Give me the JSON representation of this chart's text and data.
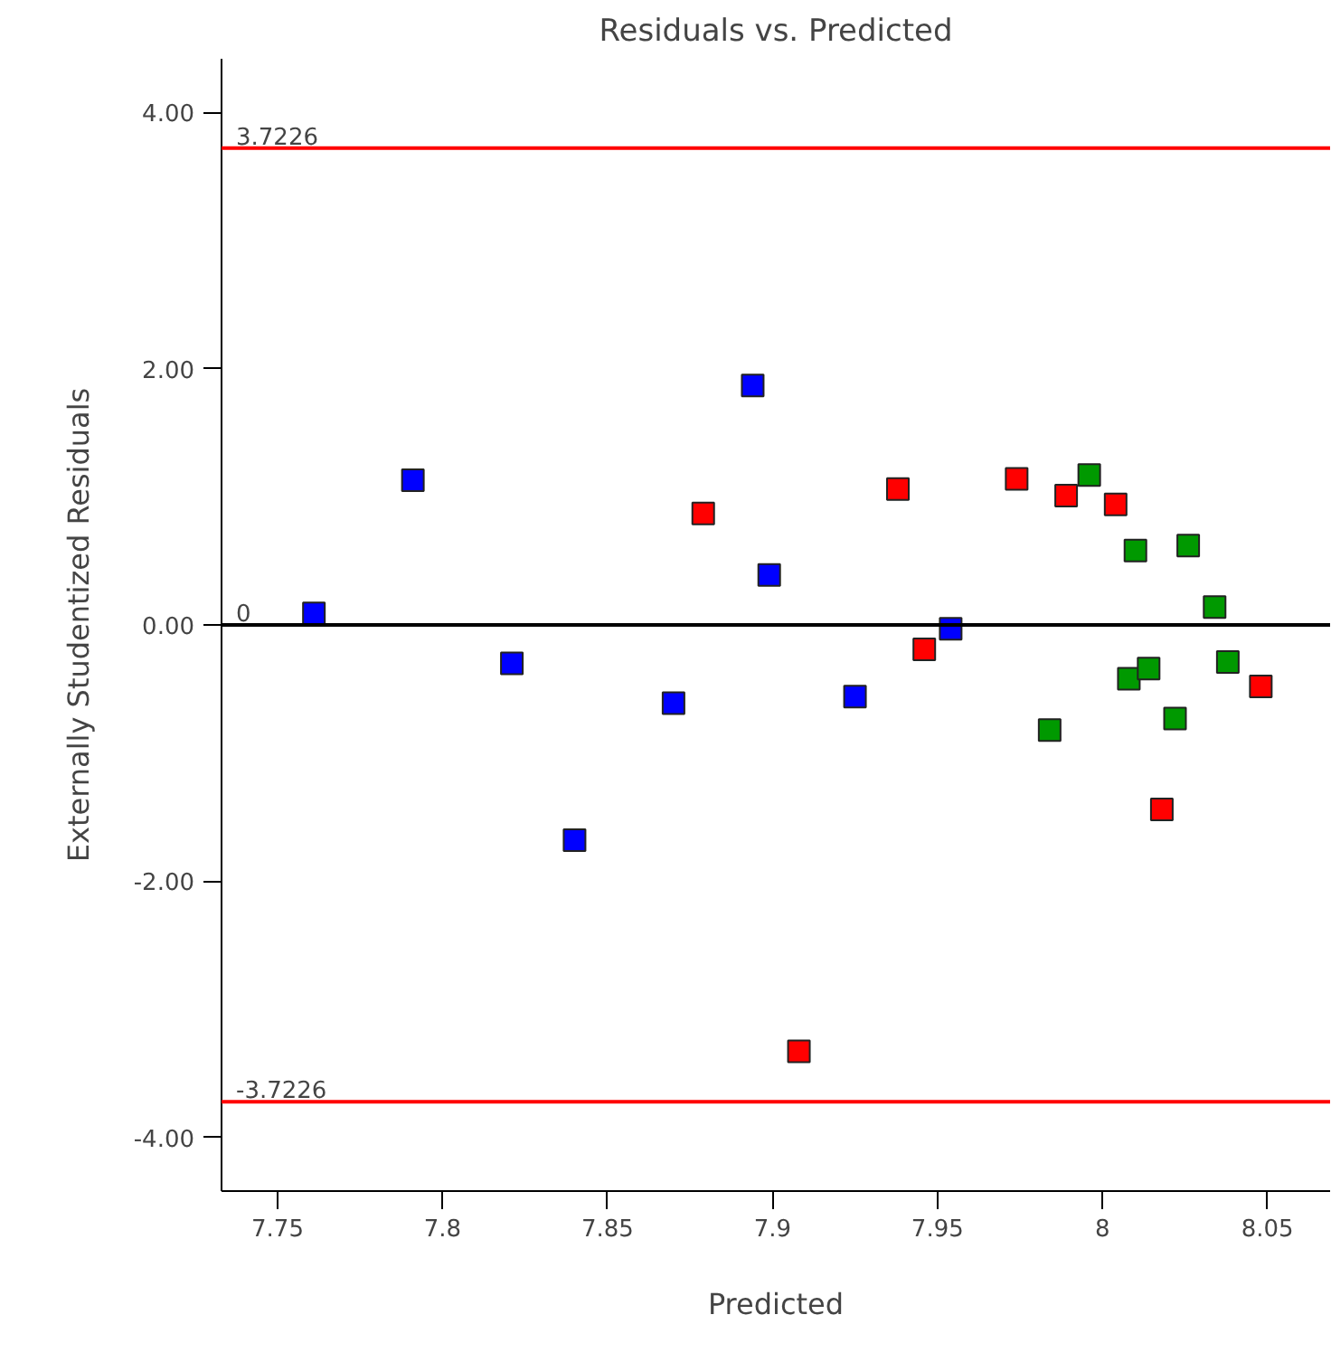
{
  "chart_data": {
    "type": "scatter",
    "title": "Residuals vs. Predicted",
    "xlabel": "Predicted",
    "ylabel": "Externally Studentized Residuals",
    "xlim": [
      7.733,
      8.069
    ],
    "ylim": [
      -4.42,
      4.42
    ],
    "xticks": [
      7.75,
      7.8,
      7.85,
      7.9,
      7.95,
      8,
      8.05
    ],
    "yticks": [
      {
        "value": -4,
        "label": "-4.00"
      },
      {
        "value": -2,
        "label": "-2.00"
      },
      {
        "value": 0,
        "label": "0.00"
      },
      {
        "value": 2,
        "label": "2.00"
      },
      {
        "value": 4,
        "label": "4.00"
      }
    ],
    "grid": false,
    "marker": "square",
    "series": [
      {
        "color": "#0000ff",
        "x": [
          7.761,
          7.791,
          7.821,
          7.84,
          7.87,
          7.894,
          7.899,
          7.925,
          7.954
        ],
        "values": [
          0.09,
          1.13,
          -0.3,
          -1.68,
          -0.61,
          1.87,
          0.39,
          -0.56,
          -0.03
        ]
      },
      {
        "color": "#ff0000",
        "x": [
          7.879,
          7.908,
          7.938,
          7.946,
          7.974,
          7.989,
          8.004,
          8.018,
          8.048
        ],
        "values": [
          0.87,
          -3.33,
          1.06,
          -0.19,
          1.14,
          1.01,
          0.94,
          -1.44,
          -0.48
        ]
      },
      {
        "color": "#009900",
        "x": [
          7.984,
          7.996,
          8.008,
          8.01,
          8.014,
          8.022,
          8.026,
          8.034,
          8.038
        ],
        "values": [
          -0.82,
          1.17,
          -0.42,
          0.58,
          -0.34,
          -0.73,
          0.62,
          0.14,
          -0.29
        ]
      }
    ],
    "ref_lines": [
      {
        "axis": "y",
        "value": 3.7226,
        "label": "3.7226",
        "color": "#ff0000"
      },
      {
        "axis": "y",
        "value": 0,
        "label": "0",
        "color": "#000000"
      },
      {
        "axis": "y",
        "value": -3.7226,
        "label": "-3.7226",
        "color": "#ff0000"
      }
    ]
  }
}
